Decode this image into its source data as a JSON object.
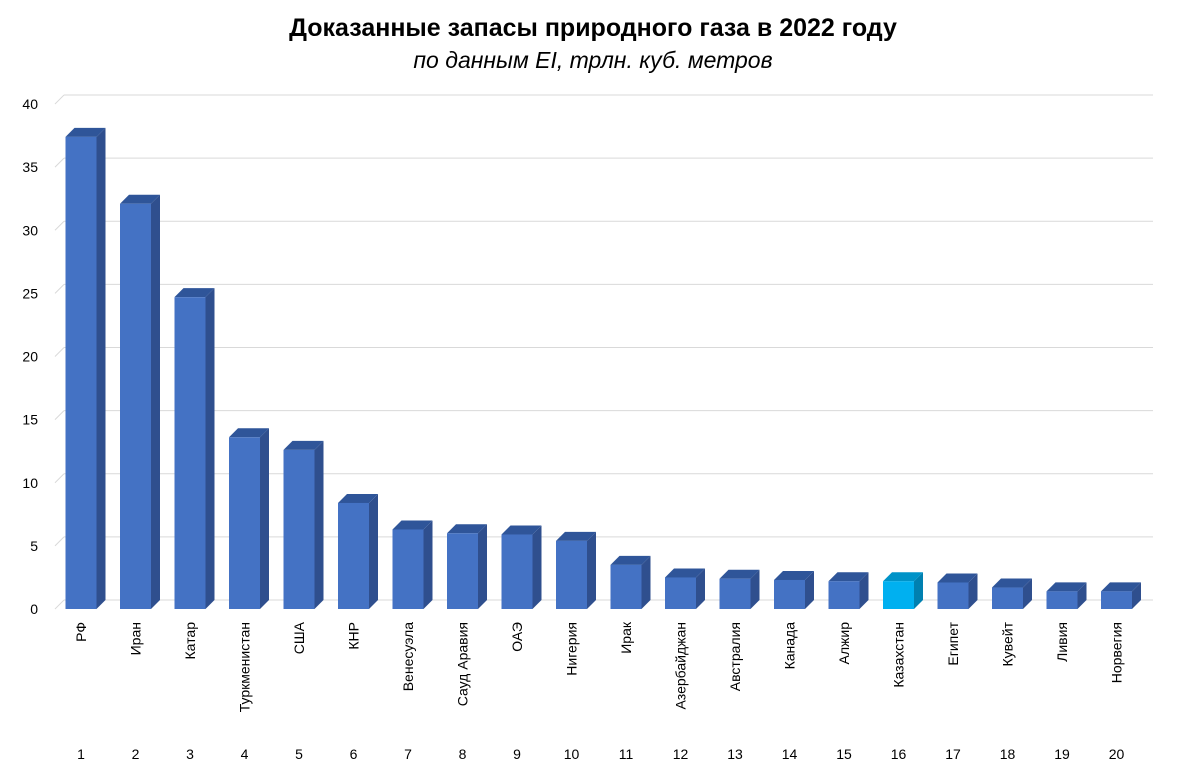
{
  "chart_data": {
    "type": "bar",
    "title": "Доказанные запасы природного газа в 2022 году",
    "subtitle": "по данным EI, трлн. куб. метров",
    "categories": [
      "РФ",
      "Иран",
      "Катар",
      "Туркменистан",
      "США",
      "КНР",
      "Венесуэла",
      "Сауд Аравия",
      "ОАЭ",
      "Нигерия",
      "Ирак",
      "Азербайджан",
      "Австралия",
      "Канада",
      "Алжир",
      "Казахстан",
      "Египет",
      "Кувейт",
      "Ливия",
      "Норвегия"
    ],
    "ranks": [
      "1",
      "2",
      "3",
      "4",
      "5",
      "6",
      "7",
      "8",
      "9",
      "10",
      "11",
      "12",
      "13",
      "14",
      "15",
      "16",
      "17",
      "18",
      "19",
      "20"
    ],
    "values": [
      37.4,
      32.1,
      24.7,
      13.6,
      12.6,
      8.4,
      6.3,
      6.0,
      5.9,
      5.4,
      3.5,
      2.5,
      2.4,
      2.3,
      2.2,
      2.2,
      2.1,
      1.7,
      1.4,
      1.4
    ],
    "ylim": [
      0,
      40
    ],
    "yticks": [
      "0",
      "5",
      "10",
      "15",
      "20",
      "25",
      "30",
      "35",
      "40"
    ],
    "grid": true,
    "colors": {
      "bar_front": "#4472c4",
      "bar_side": "#2f4f8e",
      "bar_top": "#2f5599",
      "highlight_front": "#00b0f0",
      "highlight_side": "#0080b0",
      "highlight_top": "#0093c8",
      "grid": "#d9d9d9"
    },
    "highlight_category": "Казахстан"
  }
}
